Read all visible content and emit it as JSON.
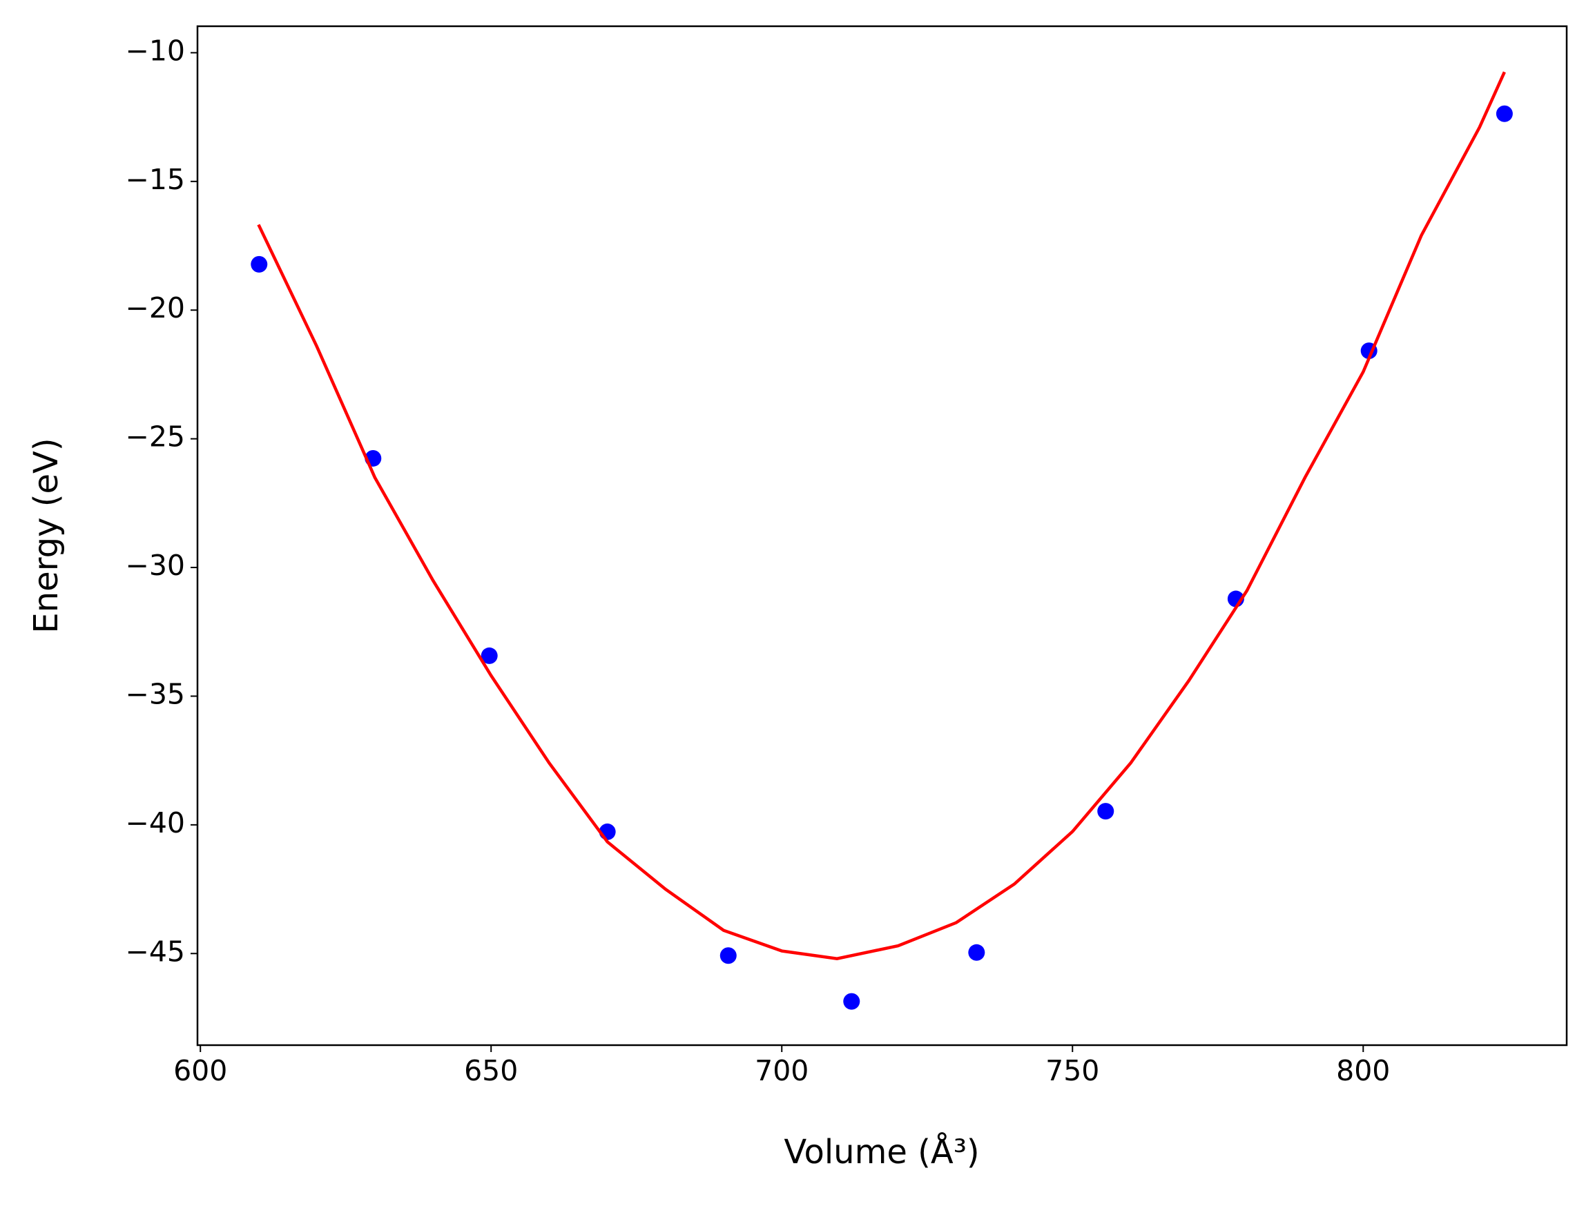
{
  "chart_data": {
    "type": "scatter",
    "xlabel": "Volume (Å³)",
    "ylabel": "Energy (eV)",
    "xlim": [
      599.5,
      835
    ],
    "ylim": [
      -48.56,
      -8.97
    ],
    "xticks": [
      600,
      650,
      700,
      750,
      800
    ],
    "yticks": [
      {
        "value": -10,
        "label": "−10"
      },
      {
        "value": -15,
        "label": "−15"
      },
      {
        "value": -20,
        "label": "−20"
      },
      {
        "value": -25,
        "label": "−25"
      },
      {
        "value": -30,
        "label": "−30"
      },
      {
        "value": -35,
        "label": "−35"
      },
      {
        "value": -40,
        "label": "−40"
      },
      {
        "value": -45,
        "label": "−45"
      }
    ],
    "series": [
      {
        "style": "markers",
        "color": "#0000ff",
        "x": [
          610.1,
          629.7,
          649.7,
          670.0,
          690.8,
          712.0,
          733.5,
          755.7,
          778.1,
          801.0,
          824.3
        ],
        "values": [
          -18.22,
          -25.76,
          -33.43,
          -40.27,
          -45.08,
          -46.86,
          -44.96,
          -39.47,
          -31.22,
          -21.58,
          -12.37
        ]
      },
      {
        "style": "line",
        "color": "#ff0000",
        "x": [
          610,
          620,
          630,
          640,
          650,
          660,
          670,
          680,
          690,
          700,
          709.5,
          720,
          730,
          740,
          750,
          760,
          770,
          780,
          790,
          800,
          810,
          820,
          824.3
        ],
        "values": [
          -16.68,
          -21.4,
          -26.5,
          -30.5,
          -34.2,
          -37.6,
          -40.66,
          -42.5,
          -44.1,
          -44.9,
          -45.2,
          -44.7,
          -43.8,
          -42.3,
          -40.26,
          -37.6,
          -34.4,
          -30.9,
          -26.5,
          -22.4,
          -17.1,
          -12.9,
          -10.75
        ]
      }
    ]
  }
}
